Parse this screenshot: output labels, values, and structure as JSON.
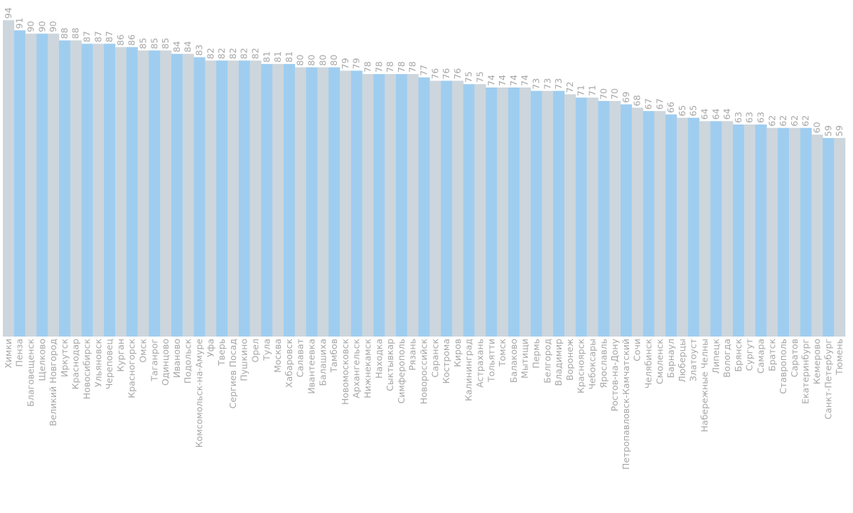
{
  "chart_data": {
    "type": "bar",
    "title": "",
    "xlabel": "",
    "ylabel": "",
    "ylim": [
      0,
      94
    ],
    "grid": false,
    "legend": "none",
    "colors": {
      "odd": "#cdd6dc",
      "even": "#9fcdf0",
      "label": "#a7a7a7"
    },
    "categories": [
      "Химки",
      "Пенза",
      "Благовещенск",
      "Щелково",
      "Великий Новгород",
      "Иркутск",
      "Краснодар",
      "Новосибирск",
      "Ульяновск",
      "Череповец",
      "Курган",
      "Красногорск",
      "Омск",
      "Таганрог",
      "Одинцово",
      "Иваново",
      "Подольск",
      "Комсомольск-на-Амуре",
      "Уфа",
      "Тверь",
      "Сергиев Посад",
      "Пушкино",
      "Орел",
      "Тула",
      "Москва",
      "Хабаровск",
      "Салават",
      "Ивантеевка",
      "Балашиха",
      "Тамбов",
      "Новомосковск",
      "Архангельск",
      "Нижнекамск",
      "Находка",
      "Сыктывкар",
      "Симферополь",
      "Рязань",
      "Новороссийск",
      "Саранск",
      "Кострома",
      "Киров",
      "Калининград",
      "Астрахань",
      "Тольятти",
      "Томск",
      "Балаково",
      "Мытищи",
      "Пермь",
      "Белгород",
      "Владимир",
      "Воронеж",
      "Красноярск",
      "Чебоксары",
      "Ярославль",
      "Ростов-на-Дону",
      "Петропавловск-Камчатский",
      "Сочи",
      "Челябинск",
      "Смоленск",
      "Барнаул",
      "Люберцы",
      "Златоуст",
      "Набережные Челны",
      "Липецк",
      "Вологда",
      "Брянск",
      "Сургут",
      "Самара",
      "Братск",
      "Ставрополь",
      "Саратов",
      "Екатеринбург",
      "Кемерово",
      "Санкт-Петербург",
      "Тюмень"
    ],
    "values": [
      94,
      91,
      90,
      90,
      90,
      88,
      88,
      87,
      87,
      87,
      86,
      86,
      85,
      85,
      85,
      84,
      84,
      83,
      82,
      82,
      82,
      82,
      82,
      81,
      81,
      81,
      80,
      80,
      80,
      80,
      79,
      79,
      78,
      78,
      78,
      78,
      78,
      77,
      76,
      76,
      76,
      75,
      75,
      74,
      74,
      74,
      74,
      73,
      73,
      73,
      72,
      71,
      71,
      70,
      70,
      69,
      68,
      67,
      67,
      66,
      65,
      65,
      64,
      64,
      64,
      63,
      63,
      63,
      62,
      62,
      62,
      62,
      60,
      59,
      59
    ]
  }
}
